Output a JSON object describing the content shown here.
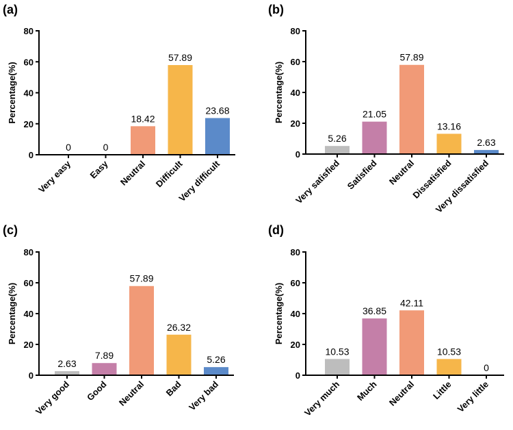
{
  "colors": {
    "gray": "#bdbdbd",
    "purple": "#c47fa8",
    "salmon": "#f19a77",
    "orange": "#f6b64a",
    "blue": "#5b8ac9",
    "axis": "#000000"
  },
  "chart_data": [
    {
      "panel": "(a)",
      "type": "bar",
      "title": "",
      "xlabel": "",
      "ylabel": "Percentage(%)",
      "ylim": [
        0,
        80
      ],
      "yticks": [
        0,
        20,
        40,
        60,
        80
      ],
      "categories": [
        "Very easy",
        "Easy",
        "Neutral",
        "Difficult",
        "Very difficult"
      ],
      "values": [
        0,
        0,
        18.42,
        57.89,
        23.68
      ],
      "value_labels": [
        "0",
        "0",
        "18.42",
        "57.89",
        "23.68"
      ],
      "bar_colors": [
        "gray",
        "purple",
        "salmon",
        "orange",
        "blue"
      ]
    },
    {
      "panel": "(b)",
      "type": "bar",
      "title": "",
      "xlabel": "",
      "ylabel": "Percentage(%)",
      "ylim": [
        0,
        80
      ],
      "yticks": [
        0,
        20,
        40,
        60,
        80
      ],
      "categories": [
        "Very satisfied",
        "Satisfied",
        "Neutral",
        "Dissatisfied",
        "Very dissatisfied"
      ],
      "values": [
        5.26,
        21.05,
        57.89,
        13.16,
        2.63
      ],
      "value_labels": [
        "5.26",
        "21.05",
        "57.89",
        "13.16",
        "2.63"
      ],
      "bar_colors": [
        "gray",
        "purple",
        "salmon",
        "orange",
        "blue"
      ]
    },
    {
      "panel": "(c)",
      "type": "bar",
      "title": "",
      "xlabel": "",
      "ylabel": "Percentage(%)",
      "ylim": [
        0,
        80
      ],
      "yticks": [
        0,
        20,
        40,
        60,
        80
      ],
      "categories": [
        "Very good",
        "Good",
        "Neutral",
        "Bad",
        "Very bad"
      ],
      "values": [
        2.63,
        7.89,
        57.89,
        26.32,
        5.26
      ],
      "value_labels": [
        "2.63",
        "7.89",
        "57.89",
        "26.32",
        "5.26"
      ],
      "bar_colors": [
        "gray",
        "purple",
        "salmon",
        "orange",
        "blue"
      ]
    },
    {
      "panel": "(d)",
      "type": "bar",
      "title": "",
      "xlabel": "",
      "ylabel": "Percentage(%)",
      "ylim": [
        0,
        80
      ],
      "yticks": [
        0,
        20,
        40,
        60,
        80
      ],
      "categories": [
        "Very much",
        "Much",
        "Neutral",
        "Little",
        "Very little"
      ],
      "values": [
        10.53,
        36.85,
        42.11,
        10.53,
        0
      ],
      "value_labels": [
        "10.53",
        "36.85",
        "42.11",
        "10.53",
        "0"
      ],
      "bar_colors": [
        "gray",
        "purple",
        "salmon",
        "orange",
        "blue"
      ]
    }
  ]
}
